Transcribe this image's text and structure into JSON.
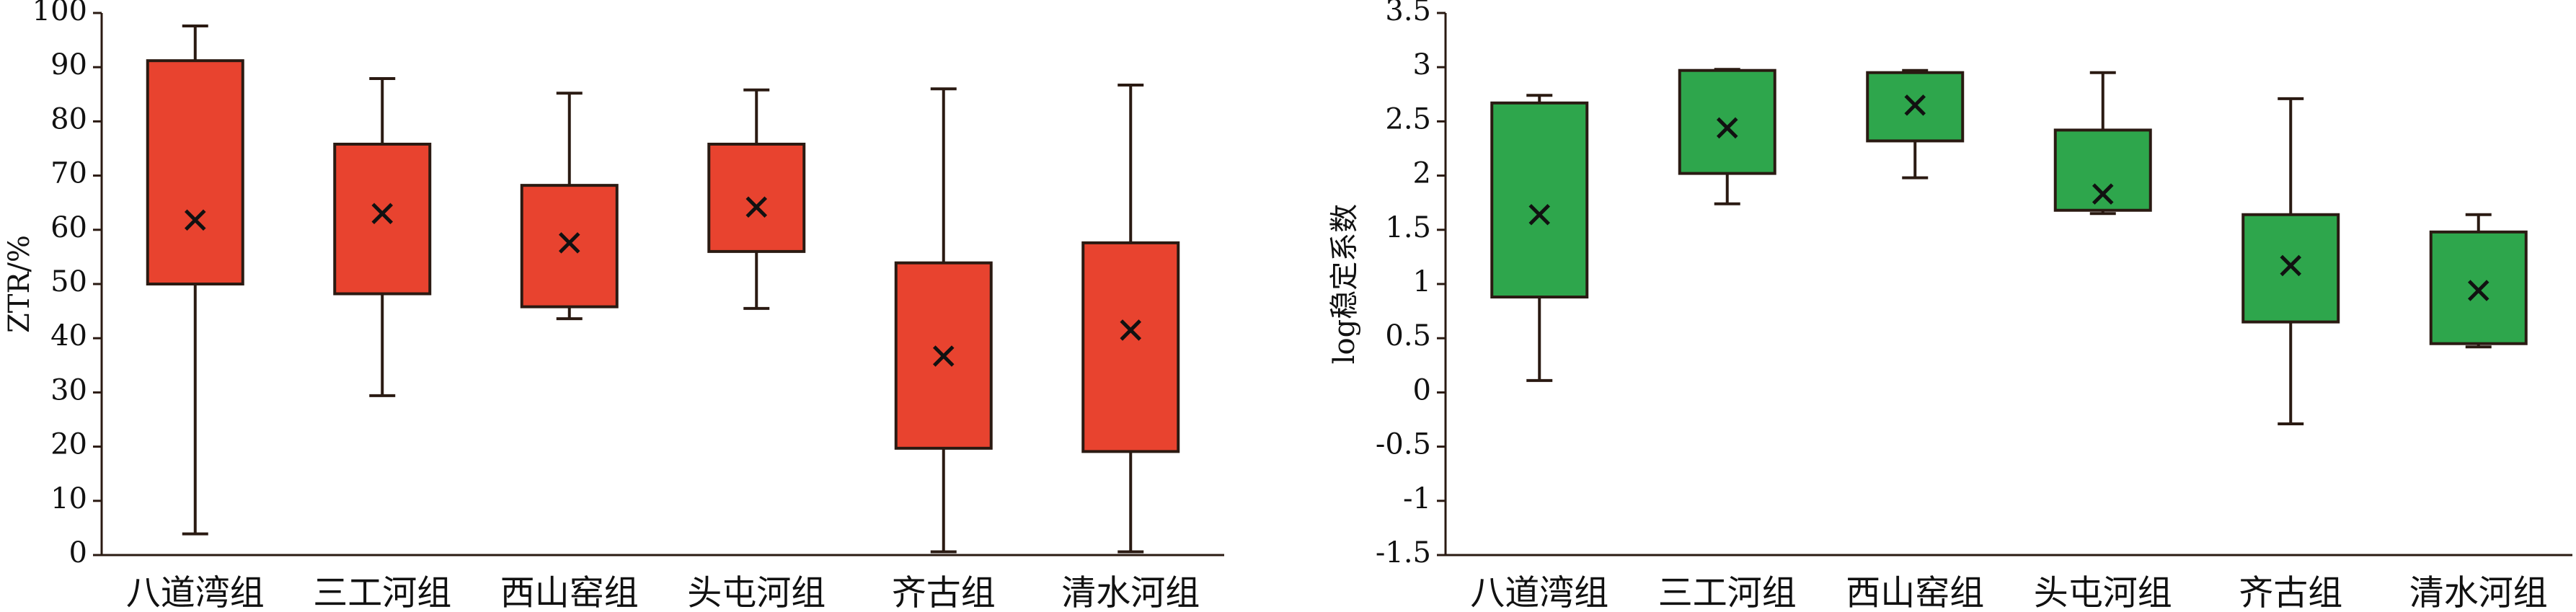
{
  "chart_data": [
    {
      "type": "box",
      "ylabel": "ZTR/%",
      "categories": [
        "八道湾组",
        "三工河组",
        "西山窑组",
        "头屯河组",
        "齐古组",
        "清水河组"
      ],
      "whisker_high": [
        97.6,
        87.9,
        85.2,
        85.8,
        86,
        86.7
      ],
      "q3": [
        91.2,
        75.8,
        68.2,
        75.8,
        53.9,
        57.6
      ],
      "q1": [
        50,
        48.2,
        45.8,
        56,
        19.7,
        19.1
      ],
      "whisker_low": [
        3.9,
        29.4,
        43.6,
        45.5,
        0.6,
        0.6
      ],
      "mean": [
        61.8,
        63,
        57.6,
        64.2,
        36.7,
        41.5
      ],
      "color": "#e8432f",
      "ylim": [
        0,
        100
      ],
      "yticks": [
        0,
        10,
        20,
        30,
        40,
        50,
        60,
        70,
        80,
        90,
        100
      ]
    },
    {
      "type": "box",
      "ylabel": "log稳定系数",
      "categories": [
        "八道湾组",
        "三工河组",
        "西山窑组",
        "头屯河组",
        "齐古组",
        "清水河组"
      ],
      "whisker_high": [
        2.74,
        2.98,
        2.97,
        2.95,
        2.71,
        1.64
      ],
      "q3": [
        2.67,
        2.97,
        2.95,
        2.42,
        1.64,
        1.48
      ],
      "q1": [
        0.88,
        2.02,
        2.32,
        1.68,
        0.65,
        0.45
      ],
      "whisker_low": [
        0.11,
        1.74,
        1.98,
        1.65,
        -0.29,
        0.42
      ],
      "mean": [
        1.64,
        2.44,
        2.65,
        1.83,
        1.17,
        0.94
      ],
      "color": "#2ea64c",
      "ylim": [
        -1.5,
        3.5
      ],
      "yticks": [
        -1.5,
        -1,
        -0.5,
        0,
        0.5,
        1,
        1.5,
        2,
        2.5,
        3,
        3.5
      ]
    }
  ]
}
